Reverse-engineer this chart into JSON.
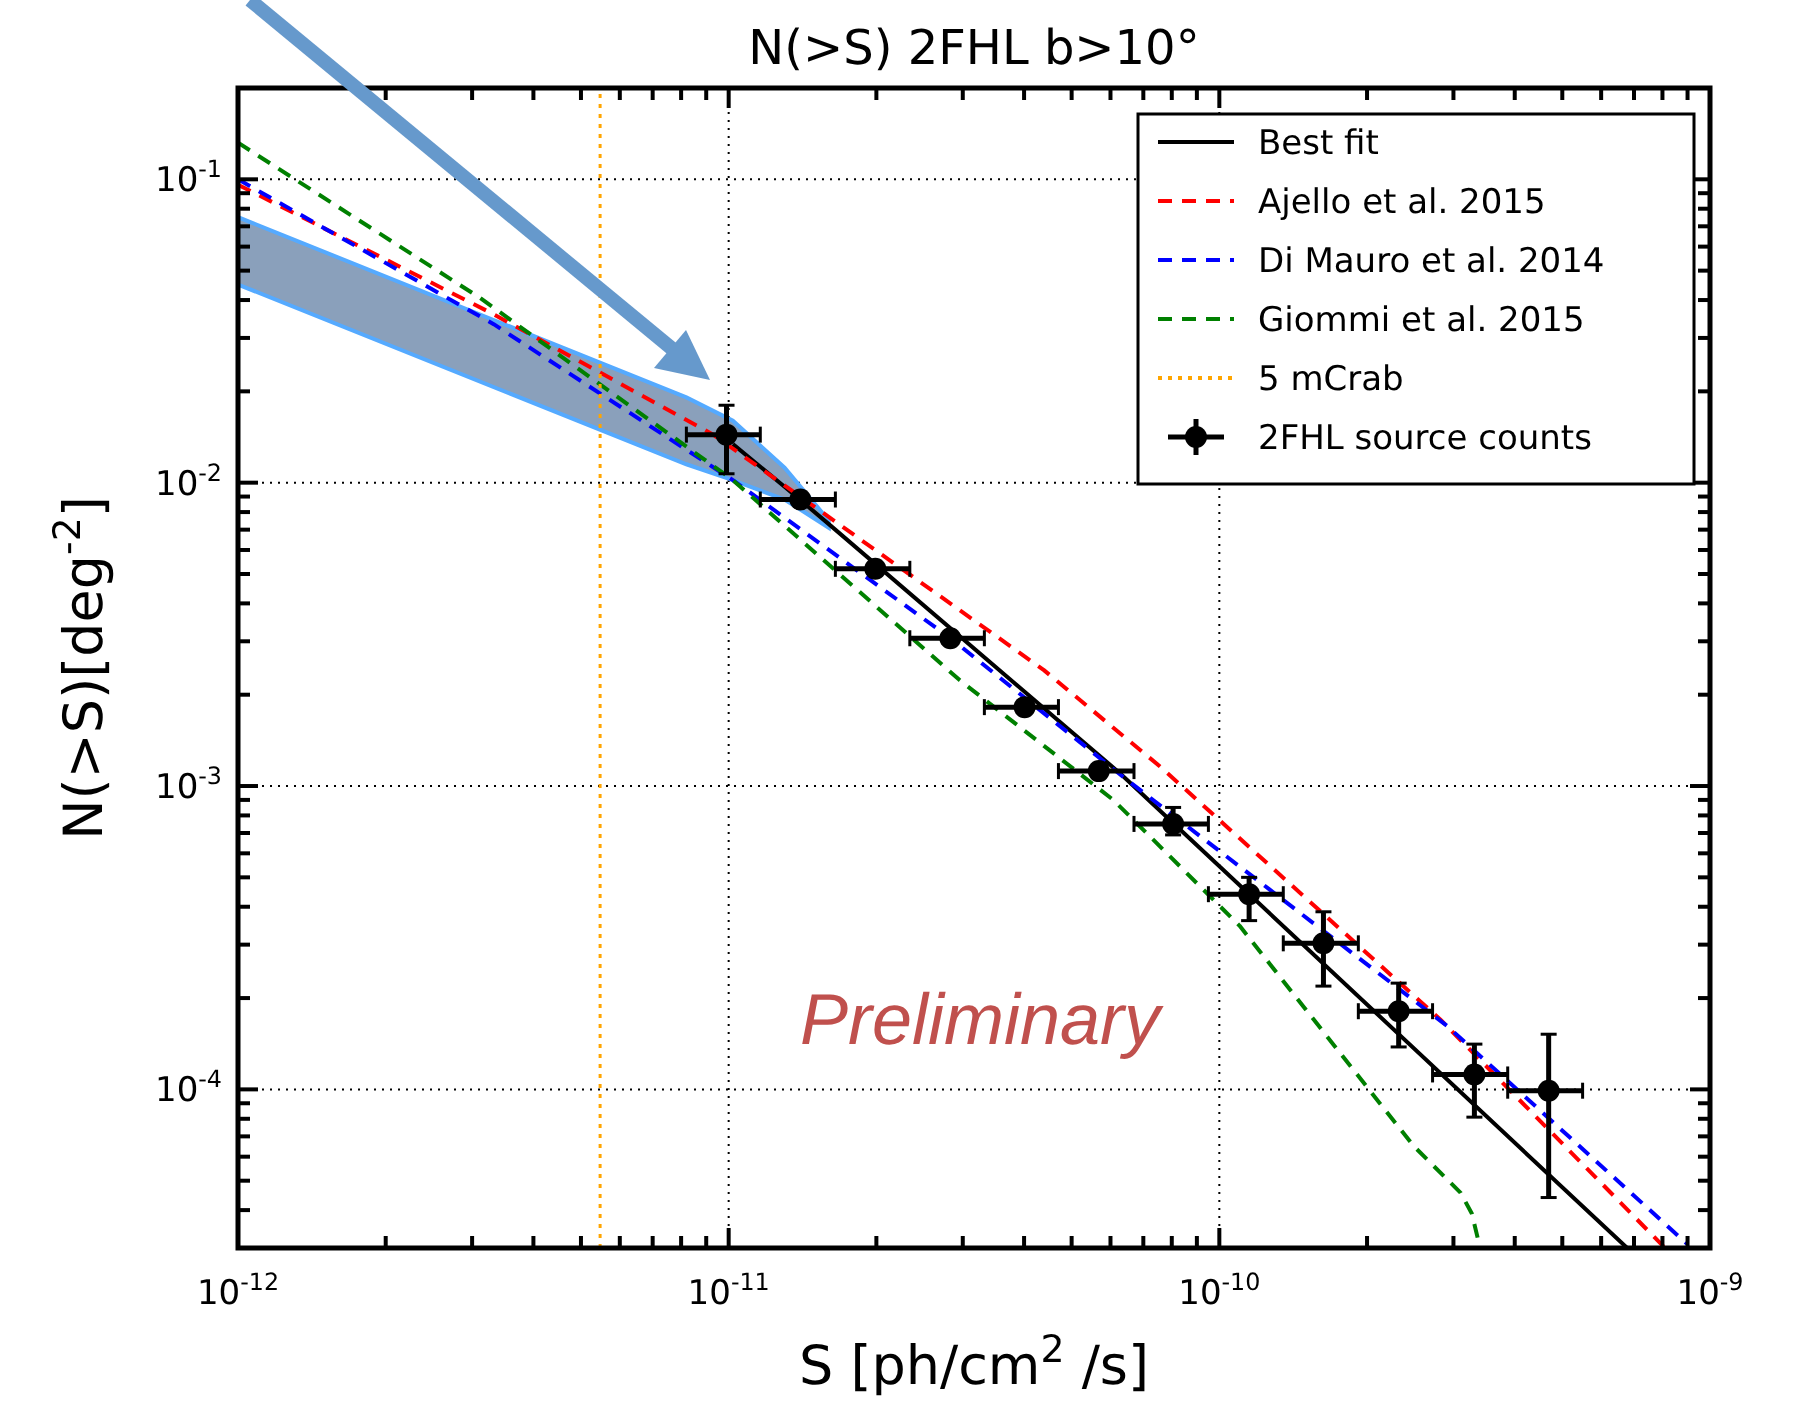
{
  "chart_data": {
    "type": "line",
    "title": "N(>S) 2FHL b>10°",
    "xlabel": "S [ph/cm$^{2}$ /s]",
    "ylabel": "N(>S)[deg$^{-2}$]",
    "log": "xy",
    "grid": true,
    "legend": "top right",
    "xlim": [
      1e-12,
      1e-09
    ],
    "ylim": [
      3e-05,
      0.2
    ],
    "xticks": [
      {
        "value": 1e-12,
        "label": "10$^{-12}$"
      },
      {
        "value": 2e-12,
        "label": null
      },
      {
        "value": 3e-12,
        "label": null
      },
      {
        "value": 4e-12,
        "label": null
      },
      {
        "value": 5e-12,
        "label": null
      },
      {
        "value": 6e-12,
        "label": null
      },
      {
        "value": 7e-12,
        "label": null
      },
      {
        "value": 8e-12,
        "label": null
      },
      {
        "value": 9e-12,
        "label": null
      },
      {
        "value": 1e-11,
        "label": "10$^{-11}$"
      },
      {
        "value": 2e-11,
        "label": null
      },
      {
        "value": 3e-11,
        "label": null
      },
      {
        "value": 4e-11,
        "label": null
      },
      {
        "value": 5e-11,
        "label": null
      },
      {
        "value": 6e-11,
        "label": null
      },
      {
        "value": 7e-11,
        "label": null
      },
      {
        "value": 8e-11,
        "label": null
      },
      {
        "value": 9e-11,
        "label": null
      },
      {
        "value": 1e-10,
        "label": "10$^{-10}$"
      },
      {
        "value": 2e-10,
        "label": null
      },
      {
        "value": 3e-10,
        "label": null
      },
      {
        "value": 4e-10,
        "label": null
      },
      {
        "value": 5e-10,
        "label": null
      },
      {
        "value": 6e-10,
        "label": null
      },
      {
        "value": 7e-10,
        "label": null
      },
      {
        "value": 8e-10,
        "label": null
      },
      {
        "value": 9e-10,
        "label": null
      },
      {
        "value": 1e-09,
        "label": "10$^{-9}$"
      }
    ],
    "yticks": [
      {
        "value": 4e-05,
        "label": null
      },
      {
        "value": 5e-05,
        "label": null
      },
      {
        "value": 6e-05,
        "label": null
      },
      {
        "value": 7e-05,
        "label": null
      },
      {
        "value": 8e-05,
        "label": null
      },
      {
        "value": 9e-05,
        "label": null
      },
      {
        "value": 0.0001,
        "label": "10$^{-4}$"
      },
      {
        "value": 0.0002,
        "label": null
      },
      {
        "value": 0.0003,
        "label": null
      },
      {
        "value": 0.0004,
        "label": null
      },
      {
        "value": 0.0005,
        "label": null
      },
      {
        "value": 0.0006,
        "label": null
      },
      {
        "value": 0.0007,
        "label": null
      },
      {
        "value": 0.0008,
        "label": null
      },
      {
        "value": 0.0009,
        "label": null
      },
      {
        "value": 0.001,
        "label": "10$^{-3}$"
      },
      {
        "value": 0.002,
        "label": null
      },
      {
        "value": 0.003,
        "label": null
      },
      {
        "value": 0.004,
        "label": null
      },
      {
        "value": 0.005,
        "label": null
      },
      {
        "value": 0.006,
        "label": null
      },
      {
        "value": 0.007,
        "label": null
      },
      {
        "value": 0.008,
        "label": null
      },
      {
        "value": 0.009,
        "label": null
      },
      {
        "value": 0.01,
        "label": "10$^{-2}$"
      },
      {
        "value": 0.02,
        "label": null
      },
      {
        "value": 0.03,
        "label": null
      },
      {
        "value": 0.04,
        "label": null
      },
      {
        "value": 0.05,
        "label": null
      },
      {
        "value": 0.06,
        "label": null
      },
      {
        "value": 0.07,
        "label": null
      },
      {
        "value": 0.08,
        "label": null
      },
      {
        "value": 0.09,
        "label": null
      },
      {
        "value": 0.1,
        "label": "10$^{-1}$"
      }
    ],
    "series": [
      {
        "name": "Best fit",
        "color": "#000000",
        "line_style": "solid",
        "x": [
          1e-12,
          8.2e-12,
          1.02e-11,
          1.3e-11,
          1.6e-11,
          6.28e-11,
          6.78e-10
        ],
        "values": [
          null,
          null,
          0.0134,
          0.0097,
          0.0073,
          0.0011,
          3e-05
        ],
        "lower": [
          0.045,
          0.0115,
          0.0102,
          0.0088,
          0.0071,
          null,
          null
        ],
        "upper": [
          0.075,
          0.0191,
          0.016,
          0.0112,
          0.0075,
          null,
          null
        ]
      },
      {
        "name": "Ajello et al. 2015",
        "color": "#ff0000",
        "line_style": "dashed",
        "x": [
          1e-12,
          3.32e-12,
          9.3e-12,
          2.38e-11,
          4.39e-11,
          7.57e-11,
          2.82e-10,
          8.1e-10
        ],
        "values": [
          0.096,
          0.0359,
          0.0144,
          0.00488,
          0.00241,
          0.00116,
          0.00017,
          3e-05
        ]
      },
      {
        "name": "Di Mauro et al. 2014",
        "color": "#0000ff",
        "line_style": "dashed",
        "x": [
          1e-12,
          3.32e-12,
          1.02e-11,
          2.87e-11,
          6.47e-11,
          2.91e-10,
          8.97e-10
        ],
        "values": [
          0.1,
          0.0333,
          0.0102,
          0.00302,
          0.00105,
          0.000162,
          3.1e-05
        ]
      },
      {
        "name": "Giommi et al. 2015",
        "color": "#008000",
        "line_style": "dashed",
        "x": [
          1e-12,
          3.11e-12,
          1.02e-11,
          2.96e-11,
          6.08e-11,
          1.1e-10,
          2.49e-10,
          3.1e-10,
          3.27e-10,
          3.4e-10
        ],
        "values": [
          0.132,
          0.0407,
          0.0102,
          0.00223,
          0.0009,
          0.000346,
          6.5e-05,
          4.57e-05,
          3.9e-05,
          3e-05
        ]
      },
      {
        "name": "5 mCrab",
        "color": "#ffa500",
        "line_style": "dotted",
        "x": [
          5.47e-12,
          5.47e-12
        ],
        "values": [
          3e-05,
          0.2
        ]
      },
      {
        "name": "2FHL source counts",
        "type": "scatter",
        "color": "#000000",
        "marker": "circle",
        "x": [
          9.9e-12,
          1.4e-11,
          1.99e-11,
          2.83e-11,
          4.01e-11,
          5.68e-11,
          8.05e-11,
          1.15e-10,
          1.63e-10,
          2.32e-10,
          3.31e-10,
          4.69e-10
        ],
        "values": [
          0.0144,
          0.0088,
          0.0052,
          0.00307,
          0.00182,
          0.00112,
          0.00075,
          0.00044,
          0.000303,
          0.000181,
          0.000112,
          9.9e-05
        ],
        "errors": [
          [
            0.0107,
            0.018
          ],
          null,
          null,
          null,
          null,
          null,
          [
            0.00069,
            0.00085
          ],
          [
            0.00036,
            0.0005
          ],
          [
            0.000219,
            0.000385
          ],
          [
            0.000138,
            0.000224
          ],
          [
            8.1e-05,
            0.000141
          ],
          [
            4.4e-05,
            0.000152
          ]
        ],
        "xerrors": [
          [
            8.2e-12,
            1.16e-11
          ],
          [
            1.16e-11,
            1.65e-11
          ],
          [
            1.65e-11,
            2.34e-11
          ],
          [
            2.34e-11,
            3.32e-11
          ],
          [
            3.32e-11,
            4.7e-11
          ],
          [
            4.7e-11,
            6.7e-11
          ],
          [
            6.7e-11,
            9.5e-11
          ],
          [
            9.5e-11,
            1.35e-10
          ],
          [
            1.35e-10,
            1.92e-10
          ],
          [
            1.92e-10,
            2.72e-10
          ],
          [
            2.72e-10,
            3.87e-10
          ],
          [
            3.87e-10,
            5.5e-10
          ]
        ]
      }
    ],
    "annotations": [
      "Preliminary"
    ]
  }
}
